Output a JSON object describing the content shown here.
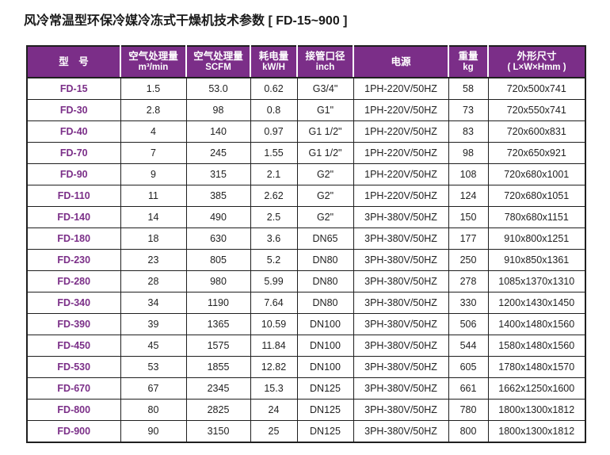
{
  "title": "风冷常温型环保冷媒冷冻式干燥机技术参数 [ FD-15~900 ]",
  "colors": {
    "header_bg": "#7b2e88",
    "header_text": "#ffffff",
    "model_text": "#7b2f88",
    "body_text": "#222222",
    "border": "#1f1f1f",
    "background": "#ffffff"
  },
  "table": {
    "columns": [
      {
        "zh": "型　号",
        "en": ""
      },
      {
        "zh": "空气处理量",
        "en": "m³/min"
      },
      {
        "zh": "空气处理量",
        "en": "SCFM"
      },
      {
        "zh": "耗电量",
        "en": "kW/H"
      },
      {
        "zh": "接管口径",
        "en": "inch"
      },
      {
        "zh": "电源",
        "en": ""
      },
      {
        "zh": "重量",
        "en": "kg"
      },
      {
        "zh": "外形尺寸",
        "en": "( L×W×Hmm )"
      }
    ],
    "rows": [
      [
        "FD-15",
        "1.5",
        "53.0",
        "0.62",
        "G3/4\"",
        "1PH-220V/50HZ",
        "58",
        "720x500x741"
      ],
      [
        "FD-30",
        "2.8",
        "98",
        "0.8",
        "G1\"",
        "1PH-220V/50HZ",
        "73",
        "720x550x741"
      ],
      [
        "FD-40",
        "4",
        "140",
        "0.97",
        "G1 1/2\"",
        "1PH-220V/50HZ",
        "83",
        "720x600x831"
      ],
      [
        "FD-70",
        "7",
        "245",
        "1.55",
        "G1 1/2\"",
        "1PH-220V/50HZ",
        "98",
        "720x650x921"
      ],
      [
        "FD-90",
        "9",
        "315",
        "2.1",
        "G2\"",
        "1PH-220V/50HZ",
        "108",
        "720x680x1001"
      ],
      [
        "FD-110",
        "11",
        "385",
        "2.62",
        "G2\"",
        "1PH-220V/50HZ",
        "124",
        "720x680x1051"
      ],
      [
        "FD-140",
        "14",
        "490",
        "2.5",
        "G2\"",
        "3PH-380V/50HZ",
        "150",
        "780x680x1151"
      ],
      [
        "FD-180",
        "18",
        "630",
        "3.6",
        "DN65",
        "3PH-380V/50HZ",
        "177",
        "910x800x1251"
      ],
      [
        "FD-230",
        "23",
        "805",
        "5.2",
        "DN80",
        "3PH-380V/50HZ",
        "250",
        "910x850x1361"
      ],
      [
        "FD-280",
        "28",
        "980",
        "5.99",
        "DN80",
        "3PH-380V/50HZ",
        "278",
        "1085x1370x1310"
      ],
      [
        "FD-340",
        "34",
        "1190",
        "7.64",
        "DN80",
        "3PH-380V/50HZ",
        "330",
        "1200x1430x1450"
      ],
      [
        "FD-390",
        "39",
        "1365",
        "10.59",
        "DN100",
        "3PH-380V/50HZ",
        "506",
        "1400x1480x1560"
      ],
      [
        "FD-450",
        "45",
        "1575",
        "11.84",
        "DN100",
        "3PH-380V/50HZ",
        "544",
        "1580x1480x1560"
      ],
      [
        "FD-530",
        "53",
        "1855",
        "12.82",
        "DN100",
        "3PH-380V/50HZ",
        "605",
        "1780x1480x1570"
      ],
      [
        "FD-670",
        "67",
        "2345",
        "15.3",
        "DN125",
        "3PH-380V/50HZ",
        "661",
        "1662x1250x1600"
      ],
      [
        "FD-800",
        "80",
        "2825",
        "24",
        "DN125",
        "3PH-380V/50HZ",
        "780",
        "1800x1300x1812"
      ],
      [
        "FD-900",
        "90",
        "3150",
        "25",
        "DN125",
        "3PH-380V/50HZ",
        "800",
        "1800x1300x1812"
      ]
    ]
  }
}
